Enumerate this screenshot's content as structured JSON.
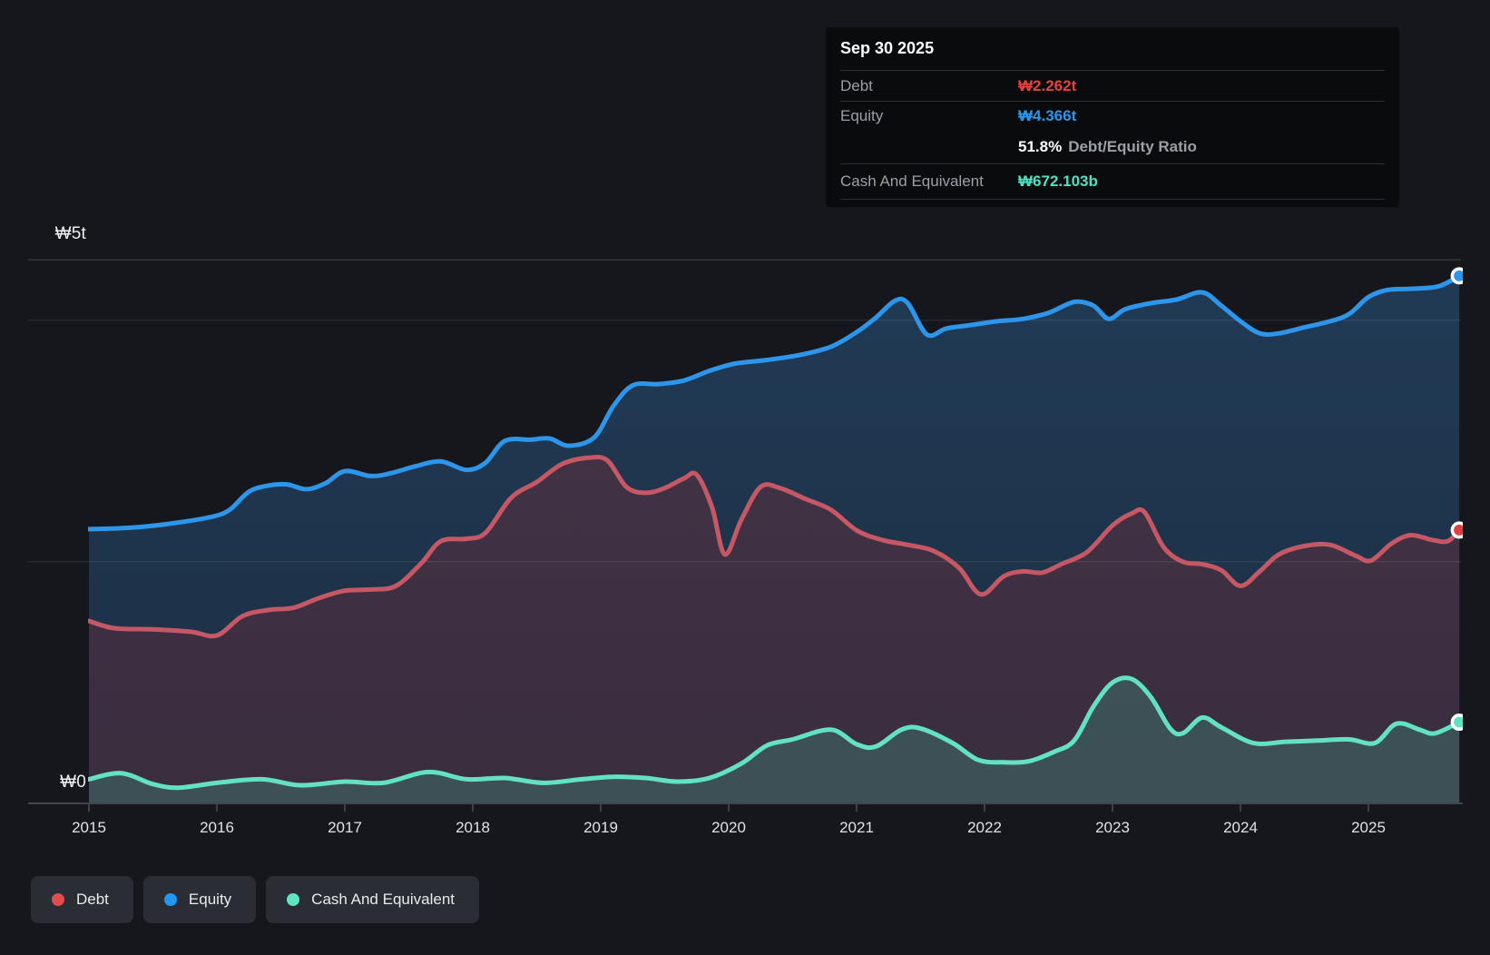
{
  "tooltip": {
    "date": "Sep 30 2025",
    "debt_label": "Debt",
    "debt_value": "₩2.262t",
    "debt_color": "#e8413c",
    "equity_label": "Equity",
    "equity_value": "₩4.366t",
    "equity_color": "#2e96ea",
    "ratio_value": "51.8%",
    "ratio_label": "Debt/Equity Ratio",
    "cash_label": "Cash And Equivalent",
    "cash_value": "₩672.103b",
    "cash_color": "#50e0c2"
  },
  "y_axis": {
    "top_label": "₩5t",
    "zero_label": "₩0"
  },
  "x_axis": {
    "years": [
      "2015",
      "2016",
      "2017",
      "2018",
      "2019",
      "2020",
      "2021",
      "2022",
      "2023",
      "2024",
      "2025"
    ]
  },
  "legend": {
    "items": [
      {
        "label": "Debt",
        "color": "#e14b4b"
      },
      {
        "label": "Equity",
        "color": "#2196f3"
      },
      {
        "label": "Cash And Equivalent",
        "color": "#5fe3c0"
      }
    ]
  },
  "chart_data": {
    "type": "area",
    "title": "Debt to Equity History",
    "unit": "KRW trillions",
    "x_range": [
      2015,
      2025.75
    ],
    "ylim": [
      0,
      5
    ],
    "grid": "horizontal",
    "gridline_values": [
      4.5,
      4.0,
      2.0
    ],
    "legend_position": "bottom-left",
    "series": [
      {
        "name": "Equity",
        "color": "#2e96ea",
        "fill_top": "#213C58",
        "fill_bottom": "#1C2E42",
        "points": [
          [
            2015.0,
            2.27
          ],
          [
            2015.3,
            2.28
          ],
          [
            2015.6,
            2.31
          ],
          [
            2015.95,
            2.37
          ],
          [
            2016.1,
            2.43
          ],
          [
            2016.25,
            2.58
          ],
          [
            2016.4,
            2.63
          ],
          [
            2016.55,
            2.64
          ],
          [
            2016.7,
            2.6
          ],
          [
            2016.85,
            2.65
          ],
          [
            2017.0,
            2.75
          ],
          [
            2017.2,
            2.71
          ],
          [
            2017.35,
            2.73
          ],
          [
            2017.55,
            2.79
          ],
          [
            2017.75,
            2.83
          ],
          [
            2017.95,
            2.76
          ],
          [
            2018.1,
            2.82
          ],
          [
            2018.25,
            3.0
          ],
          [
            2018.45,
            3.01
          ],
          [
            2018.6,
            3.02
          ],
          [
            2018.75,
            2.96
          ],
          [
            2018.95,
            3.03
          ],
          [
            2019.1,
            3.29
          ],
          [
            2019.25,
            3.46
          ],
          [
            2019.45,
            3.47
          ],
          [
            2019.65,
            3.5
          ],
          [
            2019.85,
            3.58
          ],
          [
            2020.05,
            3.64
          ],
          [
            2020.3,
            3.67
          ],
          [
            2020.55,
            3.71
          ],
          [
            2020.8,
            3.78
          ],
          [
            2021.0,
            3.9
          ],
          [
            2021.15,
            4.02
          ],
          [
            2021.3,
            4.16
          ],
          [
            2021.4,
            4.14
          ],
          [
            2021.55,
            3.88
          ],
          [
            2021.7,
            3.93
          ],
          [
            2021.9,
            3.96
          ],
          [
            2022.1,
            3.99
          ],
          [
            2022.3,
            4.01
          ],
          [
            2022.5,
            4.06
          ],
          [
            2022.7,
            4.15
          ],
          [
            2022.85,
            4.12
          ],
          [
            2022.97,
            4.01
          ],
          [
            2023.1,
            4.09
          ],
          [
            2023.3,
            4.14
          ],
          [
            2023.5,
            4.17
          ],
          [
            2023.7,
            4.23
          ],
          [
            2023.85,
            4.12
          ],
          [
            2024.0,
            3.99
          ],
          [
            2024.15,
            3.89
          ],
          [
            2024.3,
            3.89
          ],
          [
            2024.5,
            3.94
          ],
          [
            2024.7,
            3.99
          ],
          [
            2024.85,
            4.05
          ],
          [
            2025.0,
            4.19
          ],
          [
            2025.15,
            4.25
          ],
          [
            2025.35,
            4.26
          ],
          [
            2025.55,
            4.28
          ],
          [
            2025.71,
            4.366
          ]
        ]
      },
      {
        "name": "Debt",
        "color": "#c65866",
        "fill_top": "#483549",
        "fill_bottom": "#392D3E",
        "points": [
          [
            2015.0,
            1.51
          ],
          [
            2015.2,
            1.45
          ],
          [
            2015.5,
            1.44
          ],
          [
            2015.8,
            1.42
          ],
          [
            2016.0,
            1.39
          ],
          [
            2016.2,
            1.55
          ],
          [
            2016.4,
            1.6
          ],
          [
            2016.6,
            1.62
          ],
          [
            2016.8,
            1.7
          ],
          [
            2017.0,
            1.76
          ],
          [
            2017.2,
            1.77
          ],
          [
            2017.4,
            1.8
          ],
          [
            2017.6,
            1.99
          ],
          [
            2017.75,
            2.17
          ],
          [
            2017.95,
            2.19
          ],
          [
            2018.1,
            2.24
          ],
          [
            2018.3,
            2.53
          ],
          [
            2018.5,
            2.66
          ],
          [
            2018.7,
            2.81
          ],
          [
            2018.9,
            2.86
          ],
          [
            2019.05,
            2.84
          ],
          [
            2019.2,
            2.62
          ],
          [
            2019.35,
            2.57
          ],
          [
            2019.5,
            2.61
          ],
          [
            2019.65,
            2.69
          ],
          [
            2019.75,
            2.72
          ],
          [
            2019.87,
            2.45
          ],
          [
            2019.97,
            2.06
          ],
          [
            2020.1,
            2.35
          ],
          [
            2020.25,
            2.62
          ],
          [
            2020.4,
            2.61
          ],
          [
            2020.6,
            2.52
          ],
          [
            2020.8,
            2.43
          ],
          [
            2021.0,
            2.26
          ],
          [
            2021.2,
            2.18
          ],
          [
            2021.4,
            2.14
          ],
          [
            2021.6,
            2.09
          ],
          [
            2021.8,
            1.95
          ],
          [
            2021.97,
            1.73
          ],
          [
            2022.15,
            1.88
          ],
          [
            2022.3,
            1.92
          ],
          [
            2022.45,
            1.91
          ],
          [
            2022.6,
            1.98
          ],
          [
            2022.8,
            2.08
          ],
          [
            2023.0,
            2.3
          ],
          [
            2023.15,
            2.4
          ],
          [
            2023.25,
            2.41
          ],
          [
            2023.4,
            2.12
          ],
          [
            2023.55,
            2.0
          ],
          [
            2023.7,
            1.98
          ],
          [
            2023.85,
            1.93
          ],
          [
            2024.0,
            1.8
          ],
          [
            2024.15,
            1.92
          ],
          [
            2024.3,
            2.06
          ],
          [
            2024.5,
            2.13
          ],
          [
            2024.7,
            2.14
          ],
          [
            2024.9,
            2.05
          ],
          [
            2025.02,
            2.01
          ],
          [
            2025.18,
            2.15
          ],
          [
            2025.33,
            2.22
          ],
          [
            2025.5,
            2.18
          ],
          [
            2025.62,
            2.17
          ],
          [
            2025.71,
            2.262
          ]
        ]
      },
      {
        "name": "Cash And Equivalent",
        "color": "#63e2c2",
        "fill_top": "#40575B",
        "fill_bottom": "#3C5055",
        "points": [
          [
            2015.0,
            0.2
          ],
          [
            2015.25,
            0.25
          ],
          [
            2015.5,
            0.16
          ],
          [
            2015.7,
            0.13
          ],
          [
            2016.0,
            0.17
          ],
          [
            2016.35,
            0.2
          ],
          [
            2016.65,
            0.15
          ],
          [
            2017.0,
            0.18
          ],
          [
            2017.3,
            0.17
          ],
          [
            2017.65,
            0.26
          ],
          [
            2017.95,
            0.2
          ],
          [
            2018.25,
            0.21
          ],
          [
            2018.55,
            0.17
          ],
          [
            2018.85,
            0.2
          ],
          [
            2019.1,
            0.22
          ],
          [
            2019.35,
            0.21
          ],
          [
            2019.6,
            0.18
          ],
          [
            2019.85,
            0.21
          ],
          [
            2020.1,
            0.33
          ],
          [
            2020.3,
            0.48
          ],
          [
            2020.5,
            0.53
          ],
          [
            2020.8,
            0.61
          ],
          [
            2021.0,
            0.49
          ],
          [
            2021.15,
            0.47
          ],
          [
            2021.35,
            0.61
          ],
          [
            2021.5,
            0.62
          ],
          [
            2021.75,
            0.5
          ],
          [
            2021.95,
            0.36
          ],
          [
            2022.15,
            0.34
          ],
          [
            2022.35,
            0.35
          ],
          [
            2022.55,
            0.43
          ],
          [
            2022.7,
            0.52
          ],
          [
            2022.85,
            0.8
          ],
          [
            2023.0,
            1.0
          ],
          [
            2023.15,
            1.03
          ],
          [
            2023.3,
            0.88
          ],
          [
            2023.45,
            0.62
          ],
          [
            2023.55,
            0.58
          ],
          [
            2023.7,
            0.71
          ],
          [
            2023.85,
            0.63
          ],
          [
            2024.1,
            0.5
          ],
          [
            2024.35,
            0.51
          ],
          [
            2024.6,
            0.52
          ],
          [
            2024.85,
            0.53
          ],
          [
            2025.05,
            0.5
          ],
          [
            2025.22,
            0.66
          ],
          [
            2025.4,
            0.61
          ],
          [
            2025.52,
            0.58
          ],
          [
            2025.71,
            0.672
          ]
        ]
      }
    ]
  }
}
